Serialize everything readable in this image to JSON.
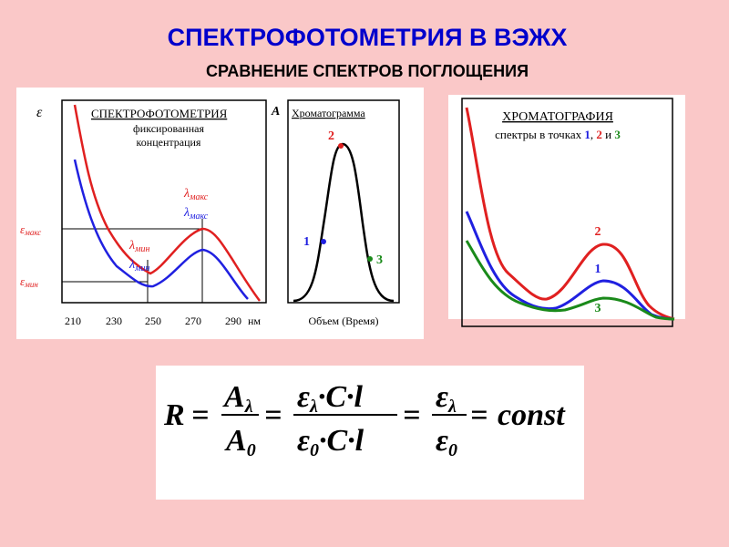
{
  "header": {
    "title": "СПЕКТРОФОТОМЕТРИЯ В ВЭЖХ",
    "subtitle": "СРАВНЕНИЕ СПЕКТРОВ ПОГЛОЩЕНИЯ"
  },
  "spectrum": {
    "y_symbol": "ε",
    "heading": "СПЕКТРОФОТОМЕТРИЯ",
    "note": [
      "фиксированная",
      "концентрация"
    ],
    "lambda_max": {
      "symbol": "λ",
      "sub": "макс"
    },
    "lambda_min": {
      "symbol": "λ",
      "sub": "мин"
    },
    "eps_max": {
      "symbol": "ε",
      "sub": "макс"
    },
    "eps_min": {
      "symbol": "ε",
      "sub": "мин"
    },
    "xticks": [
      210,
      230,
      250,
      270,
      290
    ],
    "x_unit": "нм"
  },
  "chromatogram": {
    "y_symbol": "A",
    "heading": "Хроматограмма",
    "points": [
      "1",
      "2",
      "3"
    ],
    "x_label": "Объем (Время)"
  },
  "chromatography": {
    "heading": "ХРОМАТОГРАФИЯ",
    "caption": [
      "спектры в точках",
      "1",
      ",",
      "2",
      "и",
      "3"
    ],
    "curve_labels": [
      "1",
      "2",
      "3"
    ]
  },
  "formula": {
    "R": "R",
    "eq": "=",
    "A": "A",
    "lambda": "λ",
    "zero": "0",
    "eps": "ε",
    "dot": "·",
    "C": "C",
    "l": "l",
    "const": "const"
  }
}
